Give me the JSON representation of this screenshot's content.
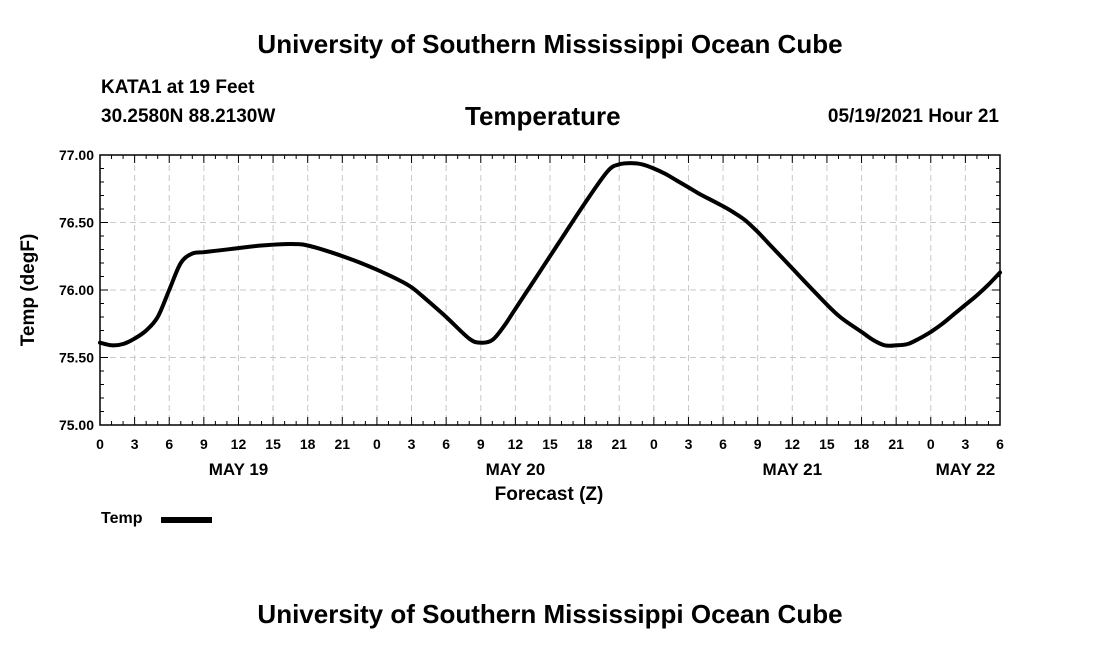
{
  "header": {
    "title": "University of Southern Mississippi Ocean Cube",
    "station": "KATA1 at 19 Feet",
    "coords": "30.2580N  88.2130W",
    "parameter": "Temperature",
    "datetime": "05/19/2021 Hour 21"
  },
  "footer": {
    "title": "University of Southern Mississippi Ocean Cube"
  },
  "legend": {
    "label": "Temp"
  },
  "chart_data": {
    "type": "line",
    "title": "Temperature",
    "xlabel": "Forecast (Z)",
    "ylabel": "Temp (degF)",
    "ylim": [
      75.0,
      77.0
    ],
    "xlim": [
      0,
      78
    ],
    "y_ticks": [
      "75.00",
      "75.50",
      "76.00",
      "76.50",
      "77.00"
    ],
    "x_tick_labels": [
      "0",
      "3",
      "6",
      "9",
      "12",
      "15",
      "18",
      "21",
      "0",
      "3",
      "6",
      "9",
      "12",
      "15",
      "18",
      "21",
      "0",
      "3",
      "6",
      "9",
      "12",
      "15",
      "18",
      "21",
      "0",
      "3",
      "6"
    ],
    "date_labels": [
      {
        "label": "MAY 19",
        "hour": 12
      },
      {
        "label": "MAY 20",
        "hour": 36
      },
      {
        "label": "MAY 21",
        "hour": 60
      },
      {
        "label": "MAY 22",
        "hour": 75
      }
    ],
    "grid": true,
    "series": [
      {
        "name": "Temp",
        "x": [
          0,
          1,
          2,
          3,
          4,
          5,
          6,
          7,
          8,
          9,
          10,
          12,
          14,
          16,
          17,
          18,
          20,
          22,
          24,
          26,
          27,
          28,
          30,
          32,
          33,
          34,
          35,
          36,
          37,
          38,
          40,
          42,
          44,
          45,
          46,
          47,
          48,
          49,
          50,
          51,
          52,
          54,
          55,
          56,
          57,
          58,
          59,
          60,
          62,
          64,
          66,
          67,
          68,
          69,
          70,
          71,
          72,
          73,
          74,
          75,
          76,
          77,
          78
        ],
        "values": [
          75.61,
          75.59,
          75.6,
          75.64,
          75.7,
          75.8,
          76.0,
          76.2,
          76.27,
          76.28,
          76.29,
          76.31,
          76.33,
          76.34,
          76.34,
          76.33,
          76.28,
          76.22,
          76.15,
          76.07,
          76.02,
          75.95,
          75.8,
          75.64,
          75.61,
          75.63,
          75.73,
          75.86,
          75.99,
          76.12,
          76.38,
          76.64,
          76.88,
          76.93,
          76.94,
          76.93,
          76.9,
          76.86,
          76.81,
          76.76,
          76.71,
          76.62,
          76.57,
          76.51,
          76.43,
          76.34,
          76.25,
          76.16,
          75.98,
          75.81,
          75.69,
          75.63,
          75.59,
          75.59,
          75.6,
          75.64,
          75.69,
          75.75,
          75.82,
          75.89,
          75.96,
          76.04,
          76.13
        ]
      }
    ]
  }
}
